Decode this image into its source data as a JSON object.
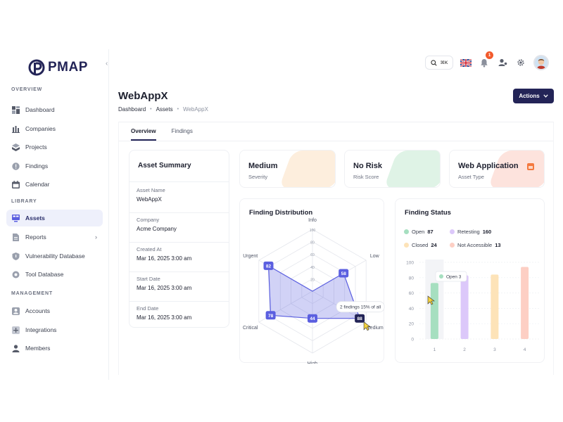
{
  "brand": {
    "name": "PMAP"
  },
  "sidebar": {
    "sections": [
      {
        "label": "OVERVIEW",
        "items": [
          {
            "label": "Dashboard",
            "icon": "dashboard-icon"
          },
          {
            "label": "Companies",
            "icon": "companies-icon"
          },
          {
            "label": "Projects",
            "icon": "projects-icon"
          },
          {
            "label": "Findings",
            "icon": "findings-icon"
          },
          {
            "label": "Calendar",
            "icon": "calendar-icon"
          }
        ]
      },
      {
        "label": "LIBRARY",
        "items": [
          {
            "label": "Assets",
            "icon": "assets-icon",
            "active": true
          },
          {
            "label": "Reports",
            "icon": "reports-icon",
            "has_submenu": true
          },
          {
            "label": "Vulnerability Database",
            "icon": "shield-icon"
          },
          {
            "label": "Tool Database",
            "icon": "tool-icon"
          }
        ]
      },
      {
        "label": "MANAGEMENT",
        "items": [
          {
            "label": "Accounts",
            "icon": "accounts-icon"
          },
          {
            "label": "Integrations",
            "icon": "integrations-icon"
          },
          {
            "label": "Members",
            "icon": "members-icon"
          }
        ]
      }
    ]
  },
  "topbar": {
    "search_shortcut": "⌘K",
    "notification_count": "1"
  },
  "header": {
    "title": "WebAppX",
    "breadcrumb": [
      "Dashboard",
      "Assets",
      "WebAppX"
    ],
    "actions_label": "Actions"
  },
  "tabs": [
    "Overview",
    "Findings"
  ],
  "asset_summary": {
    "title": "Asset Summary",
    "fields": [
      {
        "label": "Asset Name",
        "value": "WebAppX"
      },
      {
        "label": "Company",
        "value": "Acme Company"
      },
      {
        "label": "Created At",
        "value": "Mar 16, 2025 3:00 am"
      },
      {
        "label": "Start Date",
        "value": "Mar 16, 2025 3:00 am"
      },
      {
        "label": "End Date",
        "value": "Mar 16, 2025 3:00 am"
      }
    ]
  },
  "stats": [
    {
      "value": "Medium",
      "label": "Severity",
      "color": "#fdeedd"
    },
    {
      "value": "No Risk",
      "label": "Risk Score",
      "color": "#dff3e6"
    },
    {
      "value": "Web Application",
      "label": "Asset Type",
      "color": "#fde3dd"
    }
  ],
  "colors": {
    "primary": "#232457",
    "radar": "#5b5fe0",
    "tooltip_border": "#e4e6ec"
  },
  "chart_data": [
    {
      "type": "radar",
      "title": "Finding Distribution",
      "axes": [
        "Info",
        "Low",
        "Medium",
        "High",
        "Critical",
        "Urgent"
      ],
      "values": [
        0,
        58,
        88,
        44,
        78,
        82
      ],
      "rmax": 100,
      "rings": [
        20,
        40,
        60,
        80,
        100
      ],
      "tooltip": "2 findings 15% of all"
    },
    {
      "type": "bar",
      "title": "Finding Status",
      "legend": [
        {
          "name": "Open",
          "count": "87",
          "color": "#a6dfc0"
        },
        {
          "name": "Retesting",
          "count": "160",
          "color": "#dcc8fa"
        },
        {
          "name": "Closed",
          "count": "24",
          "color": "#fde3b8"
        },
        {
          "name": "Not Accessible",
          "count": "13",
          "color": "#fdcfc4"
        }
      ],
      "categories": [
        "1",
        "2",
        "3",
        "4"
      ],
      "values": [
        73,
        83,
        84,
        94
      ],
      "ylim": [
        0,
        100
      ],
      "yticks": [
        "0",
        "20",
        "40",
        "60",
        "80",
        "100"
      ],
      "tooltip": "Open 3"
    }
  ]
}
